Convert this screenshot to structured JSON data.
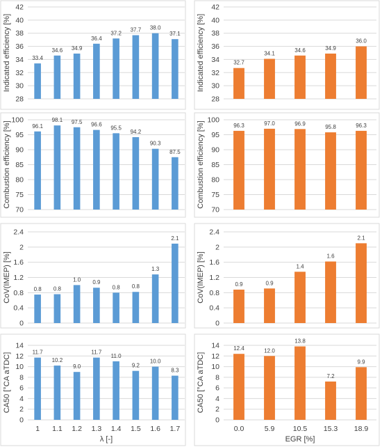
{
  "chart_data": [
    {
      "type": "bar",
      "ylabel": "Indicated efficiency [%]",
      "xlabel": "",
      "categories": [
        "1",
        "1.1",
        "1.2",
        "1.3",
        "1.4",
        "1.5",
        "1.6",
        "1.7"
      ],
      "values": [
        33.4,
        34.6,
        34.9,
        36.4,
        37.2,
        37.7,
        38.0,
        37.1
      ],
      "labels": [
        "33.4",
        "34.6",
        "34.9",
        "36.4",
        "37.2",
        "37.7",
        "38.0",
        "37.1"
      ],
      "ylim": [
        28,
        42
      ],
      "yticks": [
        "28",
        "30",
        "32",
        "34",
        "36",
        "38",
        "40",
        "42"
      ],
      "color": "#5b9bd5",
      "grid": true,
      "show_xticks": false
    },
    {
      "type": "bar",
      "ylabel": "Indicated efficiency [%]",
      "xlabel": "",
      "categories": [
        "0.0",
        "5.9",
        "10.5",
        "15.3",
        "18.9"
      ],
      "values": [
        32.7,
        34.1,
        34.6,
        34.9,
        36.0
      ],
      "labels": [
        "32.7",
        "34.1",
        "34.6",
        "34.9",
        "36.0"
      ],
      "ylim": [
        28,
        42
      ],
      "yticks": [
        "28",
        "30",
        "32",
        "34",
        "36",
        "38",
        "40",
        "42"
      ],
      "color": "#ed7d31",
      "grid": true,
      "show_xticks": false
    },
    {
      "type": "bar",
      "ylabel": "Combustion efficiency [%]",
      "xlabel": "",
      "categories": [
        "1",
        "1.1",
        "1.2",
        "1.3",
        "1.4",
        "1.5",
        "1.6",
        "1.7"
      ],
      "values": [
        96.1,
        98.1,
        97.5,
        96.6,
        95.5,
        94.2,
        90.3,
        87.5
      ],
      "labels": [
        "96.1",
        "98.1",
        "97.5",
        "96.6",
        "95.5",
        "94.2",
        "90.3",
        "87.5"
      ],
      "ylim": [
        70,
        100
      ],
      "yticks": [
        "70",
        "75",
        "80",
        "85",
        "90",
        "95",
        "100"
      ],
      "color": "#5b9bd5",
      "grid": true,
      "show_xticks": false
    },
    {
      "type": "bar",
      "ylabel": "Combustion efficiency [%]",
      "xlabel": "",
      "categories": [
        "0.0",
        "5.9",
        "10.5",
        "15.3",
        "18.9"
      ],
      "values": [
        96.3,
        97.0,
        96.9,
        95.8,
        96.3
      ],
      "labels": [
        "96.3",
        "97.0",
        "96.9",
        "95.8",
        "96.3"
      ],
      "ylim": [
        70,
        100
      ],
      "yticks": [
        "70",
        "75",
        "80",
        "85",
        "90",
        "95",
        "100"
      ],
      "color": "#ed7d31",
      "grid": true,
      "show_xticks": false
    },
    {
      "type": "bar",
      "ylabel": "CoV(IMEP) [%]",
      "xlabel": "",
      "categories": [
        "1",
        "1.1",
        "1.2",
        "1.3",
        "1.4",
        "1.5",
        "1.6",
        "1.7"
      ],
      "values": [
        0.75,
        0.76,
        1.0,
        0.93,
        0.8,
        0.82,
        1.28,
        2.09
      ],
      "labels": [
        "0.8",
        "0.8",
        "1.0",
        "0.9",
        "0.8",
        "0.8",
        "1.3",
        "2.1"
      ],
      "ylim": [
        0,
        2.4
      ],
      "yticks": [
        "0",
        "0.4",
        "0.8",
        "1.2",
        "1.6",
        "2",
        "2.4"
      ],
      "color": "#5b9bd5",
      "grid": true,
      "show_xticks": false
    },
    {
      "type": "bar",
      "ylabel": "CoV(IMEP) [%]",
      "xlabel": "",
      "categories": [
        "0.0",
        "5.9",
        "10.5",
        "15.3",
        "18.9"
      ],
      "values": [
        0.88,
        0.91,
        1.35,
        1.62,
        2.1
      ],
      "labels": [
        "0.9",
        "0.9",
        "1.4",
        "1.6",
        "2.1"
      ],
      "ylim": [
        0,
        2.4
      ],
      "yticks": [
        "0",
        "0.4",
        "0.8",
        "1.2",
        "1.6",
        "2",
        "2.4"
      ],
      "color": "#ed7d31",
      "grid": true,
      "show_xticks": false
    },
    {
      "type": "bar",
      "ylabel": "CA50 [°CA aTDC]",
      "xlabel": "λ [-]",
      "categories": [
        "1",
        "1.1",
        "1.2",
        "1.3",
        "1.4",
        "1.5",
        "1.6",
        "1.7"
      ],
      "values": [
        11.7,
        10.2,
        9.0,
        11.7,
        11.0,
        9.2,
        10.0,
        8.3
      ],
      "labels": [
        "11.7",
        "10.2",
        "9.0",
        "11.7",
        "11.0",
        "9.2",
        "10.0",
        "8.3"
      ],
      "ylim": [
        0,
        14
      ],
      "yticks": [
        "0",
        "2",
        "4",
        "6",
        "8",
        "10",
        "12",
        "14"
      ],
      "color": "#5b9bd5",
      "grid": true,
      "show_xticks": true
    },
    {
      "type": "bar",
      "ylabel": "CA50 [°CA aTDC]",
      "xlabel": "EGR [%]",
      "categories": [
        "0.0",
        "5.9",
        "10.5",
        "15.3",
        "18.9"
      ],
      "values": [
        12.4,
        12.0,
        13.8,
        7.2,
        9.9
      ],
      "labels": [
        "12.4",
        "12.0",
        "13.8",
        "7.2",
        "9.9"
      ],
      "ylim": [
        0,
        14
      ],
      "yticks": [
        "0",
        "2",
        "4",
        "6",
        "8",
        "10",
        "12",
        "14"
      ],
      "color": "#ed7d31",
      "grid": true,
      "show_xticks": true
    }
  ]
}
